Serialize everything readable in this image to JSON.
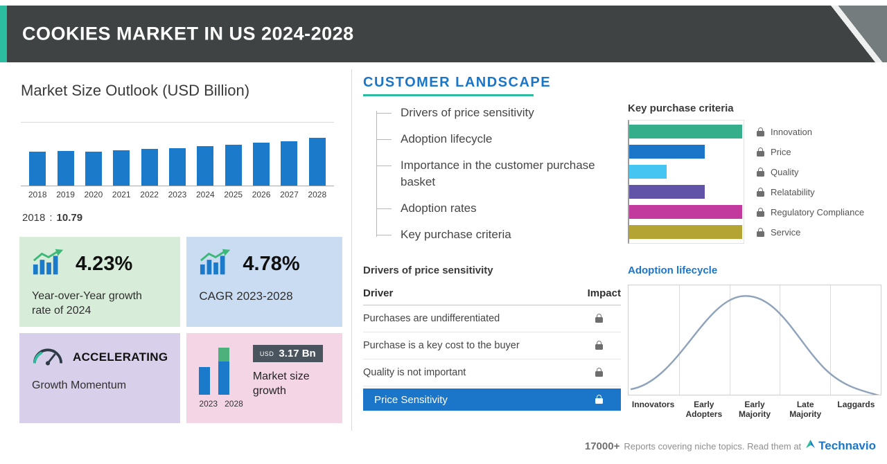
{
  "header": {
    "title": "COOKIES MARKET IN US 2024-2028"
  },
  "left": {
    "base_note": {
      "year": "2018",
      "separator": ":",
      "value": "10.79"
    },
    "cards": {
      "yoy": {
        "value": "4.23%",
        "label": "Year-over-Year growth rate of 2024"
      },
      "cagr": {
        "value": "4.78%",
        "label": "CAGR 2023-2028"
      },
      "momentum": {
        "value": "ACCELERATING",
        "label": "Growth Momentum"
      },
      "growth": {
        "badge_currency": "USD",
        "badge_value": "3.17 Bn",
        "label": "Market size growth",
        "year_start": "2023",
        "year_end": "2028"
      }
    }
  },
  "right": {
    "section_title": "CUSTOMER LANDSCAPE",
    "landscape_items": [
      "Drivers of price sensitivity",
      "Adoption lifecycle",
      "Importance in the customer purchase basket",
      "Adoption rates",
      "Key purchase criteria"
    ],
    "drivers": {
      "title": "Drivers of price sensitivity",
      "col_driver": "Driver",
      "col_impact": "Impact",
      "rows": [
        "Purchases are undifferentiated",
        "Purchase is a key cost to the buyer",
        "Quality is not important"
      ],
      "highlight_row": "Price Sensitivity"
    }
  },
  "footer": {
    "count": "17000+",
    "text": "Reports covering niche topics. Read them at",
    "brand": "Technavio"
  },
  "colors": {
    "accent_teal": "#2cbda1",
    "brand_blue": "#1b75c8",
    "header_dark": "#3f4344",
    "bar_blue": "#1b7ac9",
    "card_green": "#d8edd9",
    "card_blue": "#c9dcf2",
    "card_purple": "#d8cfea",
    "card_pink": "#f4d5e5",
    "badge_dark": "#4a545e"
  },
  "chart_data": [
    {
      "type": "bar",
      "title": "Market Size Outlook (USD Billion)",
      "categories": [
        "2018",
        "2019",
        "2020",
        "2021",
        "2022",
        "2023",
        "2024",
        "2025",
        "2026",
        "2027",
        "2028"
      ],
      "values": [
        10.79,
        11.12,
        10.97,
        11.31,
        11.67,
        12.06,
        12.57,
        13.11,
        13.68,
        14.28,
        15.23
      ],
      "labeled_point": {
        "category": "2018",
        "value": 10.79
      },
      "bar_color": "#1b7ac9",
      "ylim": [
        0,
        16
      ],
      "value_labels_shown": false
    },
    {
      "type": "bar",
      "orientation": "horizontal",
      "title": "Key purchase criteria",
      "categories": [
        "Innovation",
        "Price",
        "Quality",
        "Relatability",
        "Regulatory Compliance",
        "Service"
      ],
      "relative_lengths_pct": [
        99,
        66,
        33,
        66,
        99,
        99
      ],
      "colors": [
        "#35ae8c",
        "#1b75c8",
        "#45c5f2",
        "#6153a8",
        "#c23a9e",
        "#b3a433"
      ],
      "values_hidden": true,
      "legend_position": "right"
    },
    {
      "type": "line",
      "shape": "bell-curve",
      "title": "Adoption lifecycle",
      "stages": [
        "Innovators",
        "Early Adopters",
        "Early Majority",
        "Late Majority",
        "Laggards"
      ],
      "peak_stage": "Early Majority",
      "line_color": "#8fa3bb",
      "values_hidden": true
    }
  ]
}
